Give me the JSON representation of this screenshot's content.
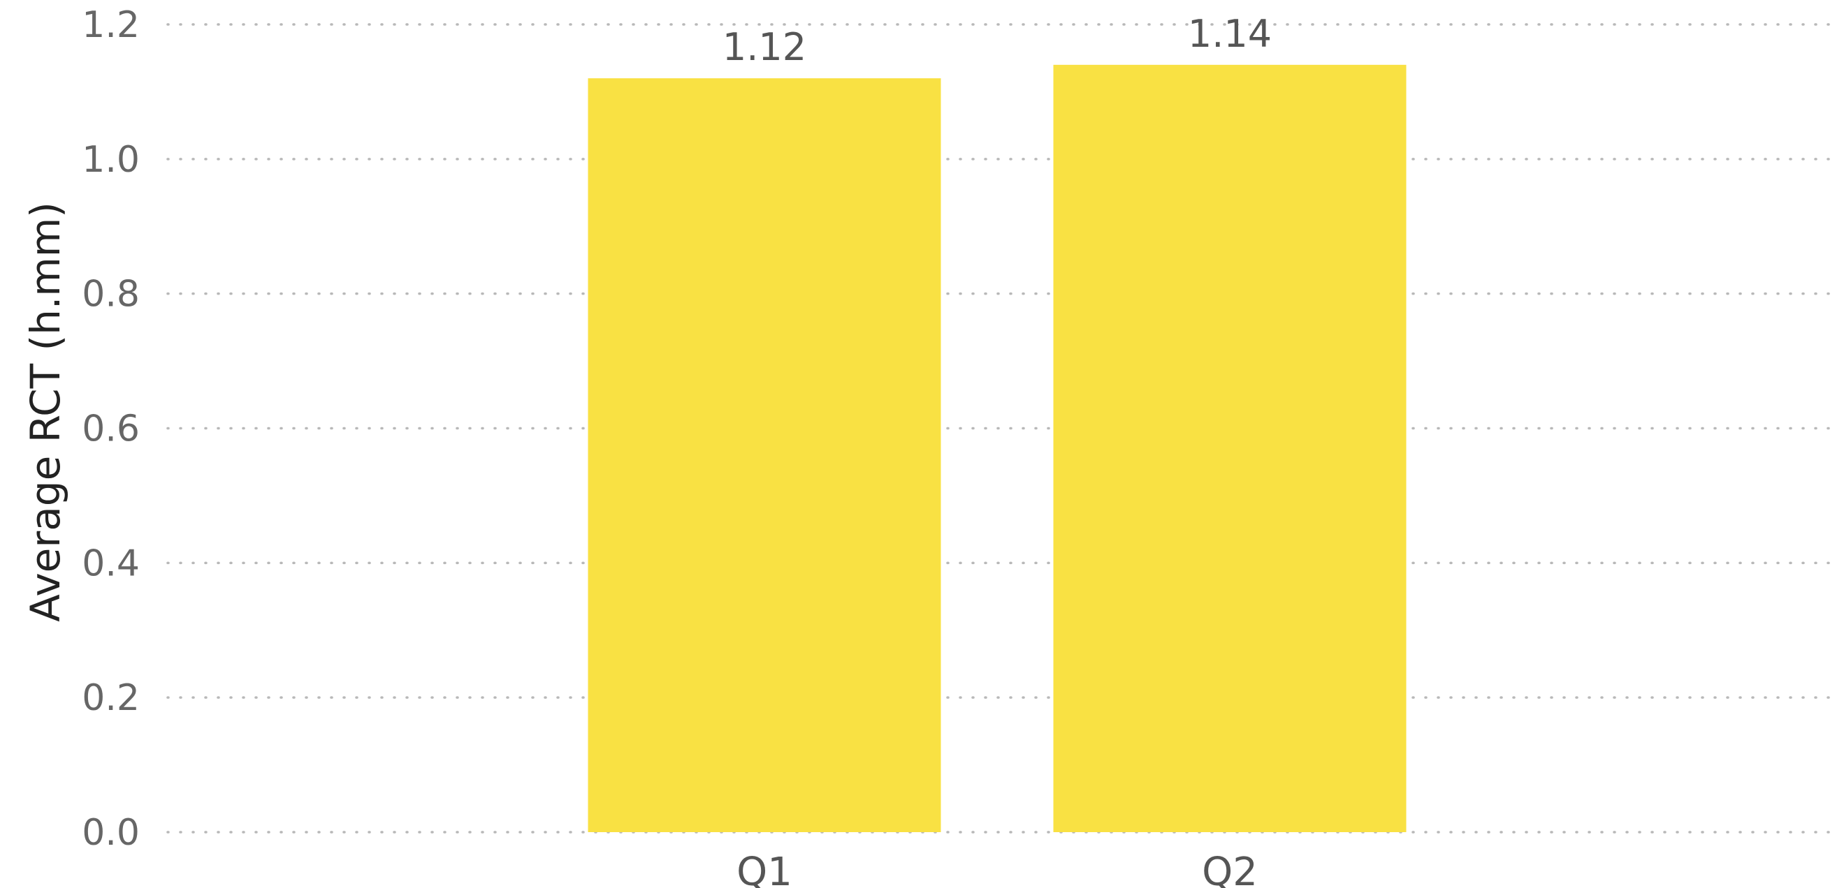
{
  "chart_data": {
    "type": "bar",
    "categories": [
      "Q1",
      "Q2"
    ],
    "values": [
      1.12,
      1.14
    ],
    "data_labels": [
      "1.12",
      "1.14"
    ],
    "title": "",
    "xlabel": "",
    "ylabel": "Average RCT (h.mm)",
    "ylim": [
      0,
      1.2
    ],
    "yticks": [
      "0.0",
      "0.2",
      "0.4",
      "0.6",
      "0.8",
      "1.0",
      "1.2"
    ],
    "grid": true,
    "legend": "none",
    "bar_color": "#F9E143",
    "gridline_color": "#b8b8b8"
  }
}
